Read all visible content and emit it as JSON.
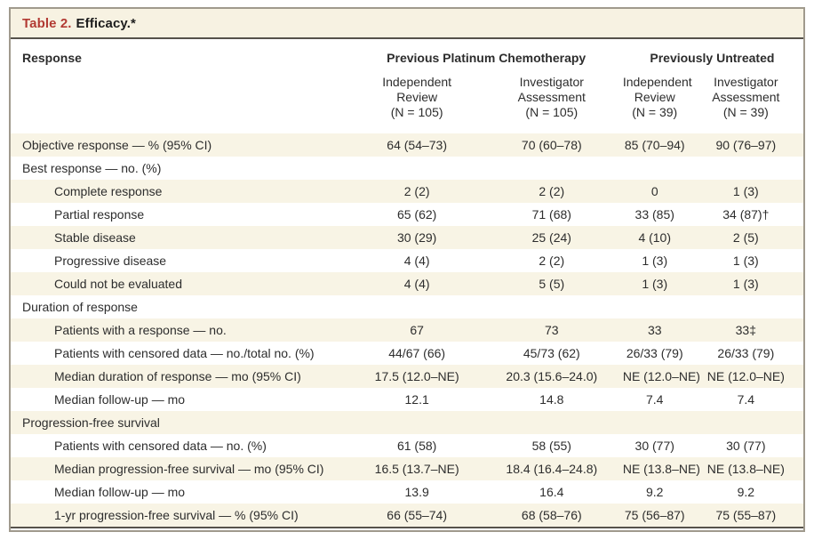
{
  "table": {
    "number_label": "Table 2.",
    "title": "Efficacy.*",
    "colors": {
      "accent_red": "#b23a33",
      "row_shade": "#f8f4e5",
      "title_band_bg": "#f7f2e2",
      "rule_dark": "#56524b",
      "outer_border": "#a09a8d"
    },
    "columns": {
      "response_header": "Response",
      "groups": [
        {
          "label": "Previous Platinum Chemotherapy"
        },
        {
          "label": "Previously Untreated"
        }
      ],
      "subheaders": [
        "Independent\nReview\n(N = 105)",
        "Investigator\nAssessment\n(N = 105)",
        "Independent\nReview\n(N = 39)",
        "Investigator\nAssessment\n(N = 39)"
      ]
    },
    "rows": [
      {
        "label": "Objective response — % (95% CI)",
        "indent": 0,
        "shaded": true,
        "values": [
          "64 (54–73)",
          "70 (60–78)",
          "85 (70–94)",
          "90 (76–97)"
        ]
      },
      {
        "label": "Best response — no. (%)",
        "indent": 0,
        "shaded": false,
        "values": [
          "",
          "",
          "",
          ""
        ]
      },
      {
        "label": "Complete response",
        "indent": 1,
        "shaded": true,
        "values": [
          "2 (2)",
          "2 (2)",
          "0",
          "1 (3)"
        ]
      },
      {
        "label": "Partial response",
        "indent": 1,
        "shaded": false,
        "values": [
          "65 (62)",
          "71 (68)",
          "33 (85)",
          "34 (87)†"
        ]
      },
      {
        "label": "Stable disease",
        "indent": 1,
        "shaded": true,
        "values": [
          "30 (29)",
          "25 (24)",
          "4 (10)",
          "2 (5)"
        ]
      },
      {
        "label": "Progressive disease",
        "indent": 1,
        "shaded": false,
        "values": [
          "4 (4)",
          "2 (2)",
          "1 (3)",
          "1 (3)"
        ]
      },
      {
        "label": "Could not be evaluated",
        "indent": 1,
        "shaded": true,
        "values": [
          "4 (4)",
          "5 (5)",
          "1 (3)",
          "1 (3)"
        ]
      },
      {
        "label": "Duration of response",
        "indent": 0,
        "shaded": false,
        "values": [
          "",
          "",
          "",
          ""
        ]
      },
      {
        "label": "Patients with a response — no.",
        "indent": 1,
        "shaded": true,
        "values": [
          "67",
          "73",
          "33",
          "33‡"
        ]
      },
      {
        "label": "Patients with censored data — no./total no. (%)",
        "indent": 1,
        "shaded": false,
        "values": [
          "44/67 (66)",
          "45/73 (62)",
          "26/33 (79)",
          "26/33 (79)"
        ]
      },
      {
        "label": "Median duration of response — mo (95% CI)",
        "indent": 1,
        "shaded": true,
        "values": [
          "17.5 (12.0–NE)",
          "20.3 (15.6–24.0)",
          "NE (12.0–NE)",
          "NE (12.0–NE)"
        ]
      },
      {
        "label": "Median follow-up — mo",
        "indent": 1,
        "shaded": false,
        "values": [
          "12.1",
          "14.8",
          "7.4",
          "7.4"
        ]
      },
      {
        "label": "Progression-free survival",
        "indent": 0,
        "shaded": true,
        "values": [
          "",
          "",
          "",
          ""
        ]
      },
      {
        "label": "Patients with censored data — no. (%)",
        "indent": 1,
        "shaded": false,
        "values": [
          "61 (58)",
          "58 (55)",
          "30 (77)",
          "30 (77)"
        ]
      },
      {
        "label": "Median progression-free survival — mo (95% CI)",
        "indent": 1,
        "shaded": true,
        "values": [
          "16.5 (13.7–NE)",
          "18.4 (16.4–24.8)",
          "NE (13.8–NE)",
          "NE (13.8–NE)"
        ]
      },
      {
        "label": "Median follow-up — mo",
        "indent": 1,
        "shaded": false,
        "values": [
          "13.9",
          "16.4",
          "9.2",
          "9.2"
        ]
      },
      {
        "label": "1-yr progression-free survival — % (95% CI)",
        "indent": 1,
        "shaded": true,
        "values": [
          "66 (55–74)",
          "68 (58–76)",
          "75 (56–87)",
          "75 (55–87)"
        ]
      }
    ]
  }
}
